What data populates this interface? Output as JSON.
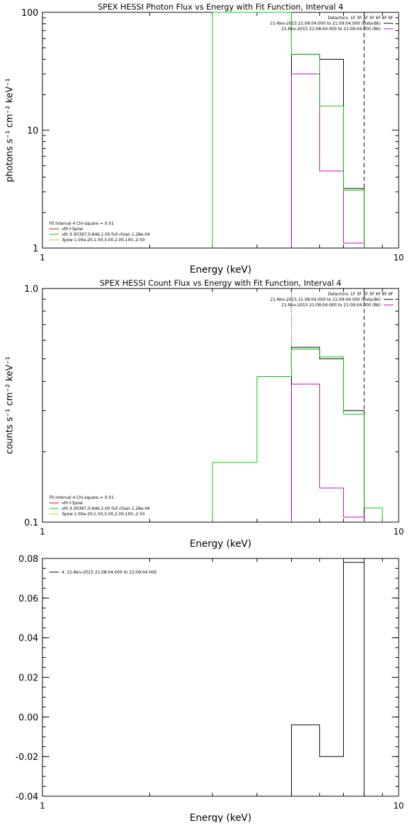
{
  "charts": [
    {
      "title": "SPEX HESSI Photon Flux vs Energy with Fit Function, Interval 4",
      "xlabel": "Energy (keV)",
      "ylabel": "photons s⁻¹ cm⁻² keV⁻¹",
      "legend_right": [
        "Detectors: 1F 3F 4F 5F 6F 8F 9F",
        "21-Nov-2015 21:08:04.000 to 21:09:04.000 (Data-Bk)",
        "21-Nov-2015 21:08:04.000 to 21:09:04.000 (Bk)"
      ],
      "legend_left": [
        "Fit Interval  4    Chi-square = 0.01",
        "vth+3pow",
        "vth 0.00397,0.846,1.00   full chian 1.28e-04",
        "3pow 1.00e-20,1.50,3.00,2.00,100.,2.50"
      ]
    },
    {
      "title": "SPEX HESSI Count Flux vs Energy with Fit Function, Interval 4",
      "xlabel": "Energy (keV)",
      "ylabel": "counts s⁻¹ cm⁻² keV⁻¹",
      "legend_right": [
        "Detectors: 1F 3F 4F 5F 6F 8F 9F",
        "21-Nov-2015 21:08:04.000 to 21:09:04.000 (Data-Bk)",
        "21-Nov-2015 21:08:04.000 to 21:09:04.000 (Bk)"
      ],
      "legend_left": [
        "Fit Interval  4    Chi-square = 0.01",
        "vth+3pow",
        "vth 0.00397,0.846,1.00   full chian 1.28e-04",
        "3pow 1.00e-20,1.50,3.00,2.00,100.,2.50"
      ]
    },
    {
      "title": "",
      "xlabel": "Energy (keV)",
      "ylabel": "",
      "legend_left": [
        "4. 21-Nov-2015 21:08:04.000 to 21:09:04.000"
      ]
    }
  ],
  "chart_data": [
    {
      "type": "line",
      "title": "SPEX HESSI Photon Flux vs Energy with Fit Function, Interval 4",
      "xscale": "log",
      "yscale": "log",
      "xlim": [
        1,
        10
      ],
      "ylim": [
        1,
        100
      ],
      "xticks": [
        1,
        10
      ],
      "yticks": [
        1,
        10,
        100
      ],
      "xtick_labels": [
        "1",
        "10"
      ],
      "ytick_labels": [
        "1",
        "10",
        "100"
      ],
      "vlines": [
        {
          "x": 5,
          "style": "dotted",
          "color": "#000000"
        },
        {
          "x": 8,
          "style": "dashed",
          "color": "#000000"
        }
      ],
      "series": [
        {
          "name": "Data-Bk",
          "color": "#000000",
          "edges": [
            5,
            6,
            7,
            8
          ],
          "values": [
            44,
            40,
            3.2
          ]
        },
        {
          "name": "Bk",
          "color": "#cc00cc",
          "edges": [
            5,
            6,
            7,
            8
          ],
          "values": [
            30,
            4.5,
            1.1
          ]
        },
        {
          "name": "vth 0.00397,0.846,1.00",
          "color": "#00cc00",
          "edges": [
            3,
            5,
            6,
            7,
            8
          ],
          "values": [
            100,
            44,
            16,
            3.1
          ],
          "leading_vline": true
        }
      ]
    },
    {
      "type": "line",
      "title": "SPEX HESSI Count Flux vs Energy with Fit Function, Interval 4",
      "xscale": "log",
      "yscale": "log",
      "xlim": [
        1,
        10
      ],
      "ylim": [
        0.1,
        1.0
      ],
      "xticks": [
        1,
        10
      ],
      "yticks": [
        0.1,
        1.0
      ],
      "xtick_labels": [
        "1",
        "10"
      ],
      "ytick_labels": [
        "0.1",
        "1.0"
      ],
      "vlines": [
        {
          "x": 5,
          "style": "dotted",
          "color": "#000000"
        },
        {
          "x": 8,
          "style": "dashed",
          "color": "#000000"
        }
      ],
      "series": [
        {
          "name": "Data-Bk",
          "color": "#000000",
          "edges": [
            5,
            6,
            7,
            8
          ],
          "values": [
            0.56,
            0.5,
            0.3
          ]
        },
        {
          "name": "Bk",
          "color": "#cc00cc",
          "edges": [
            5,
            6,
            7,
            8
          ],
          "values": [
            0.39,
            0.14,
            0.105
          ]
        },
        {
          "name": "vth 0.00397,0.846,1.00",
          "color": "#00cc00",
          "edges": [
            3,
            4,
            5,
            6,
            7,
            8,
            9
          ],
          "values": [
            0.18,
            0.42,
            0.55,
            0.51,
            0.29,
            0.115
          ]
        }
      ]
    },
    {
      "type": "line",
      "title": "",
      "xscale": "log",
      "yscale": "linear",
      "xlim": [
        1,
        10
      ],
      "ylim": [
        -0.04,
        0.08
      ],
      "xticks": [
        1,
        10
      ],
      "yticks": [
        -0.04,
        -0.02,
        0.0,
        0.02,
        0.04,
        0.06,
        0.08
      ],
      "xtick_labels": [
        "1",
        "10"
      ],
      "ytick_labels": [
        "-0.04",
        "-0.02",
        "0.00",
        "0.02",
        "0.04",
        "0.06",
        "0.08"
      ],
      "vlines": [],
      "series": [
        {
          "name": "4. 21-Nov-2015 21:08:04.000 to 21:09:04.000",
          "color": "#000000",
          "edges": [
            5,
            6,
            7,
            8
          ],
          "values": [
            -0.004,
            -0.02,
            0.078
          ],
          "drop_to_bottom": true
        }
      ]
    }
  ]
}
